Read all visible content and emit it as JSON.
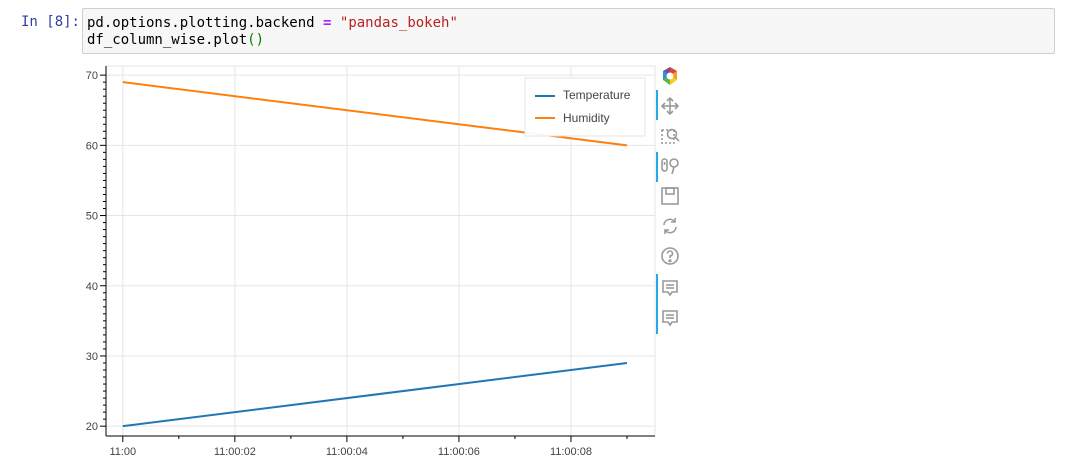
{
  "cell": {
    "prompt": "In [8]:",
    "code": {
      "line1_lhs": "pd.options.plotting.backend",
      "line1_op": "=",
      "line1_str": "\"pandas_bokeh\"",
      "line2_fn": "df_column_wise.plot",
      "line2_parens": "()"
    }
  },
  "chart_data": {
    "type": "line",
    "x": [
      "11:00",
      "11:00:09"
    ],
    "xticks": [
      "11:00",
      "11:00:02",
      "11:00:04",
      "11:00:06",
      "11:00:08"
    ],
    "yticks": [
      20,
      30,
      40,
      50,
      60,
      70
    ],
    "xlim": [
      -0.3,
      9.5
    ],
    "ylim": [
      18.6,
      71.3
    ],
    "grid": true,
    "legend_position": "top-right",
    "series": [
      {
        "name": "Temperature",
        "color": "#1f77b4",
        "x": [
          0,
          9
        ],
        "values": [
          20,
          29
        ]
      },
      {
        "name": "Humidity",
        "color": "#ff7f0e",
        "x": [
          0,
          9
        ],
        "values": [
          69,
          60
        ]
      }
    ]
  },
  "toolbar": {
    "tools": [
      {
        "name": "bokeh-logo-icon",
        "active": false
      },
      {
        "name": "pan-icon",
        "active": true
      },
      {
        "name": "box-zoom-icon",
        "active": false
      },
      {
        "name": "wheel-zoom-icon",
        "active": true
      },
      {
        "name": "save-icon",
        "active": false
      },
      {
        "name": "reset-icon",
        "active": false
      },
      {
        "name": "help-icon",
        "active": false
      },
      {
        "name": "hover-icon",
        "active": true
      },
      {
        "name": "hover-icon",
        "active": true
      }
    ]
  }
}
